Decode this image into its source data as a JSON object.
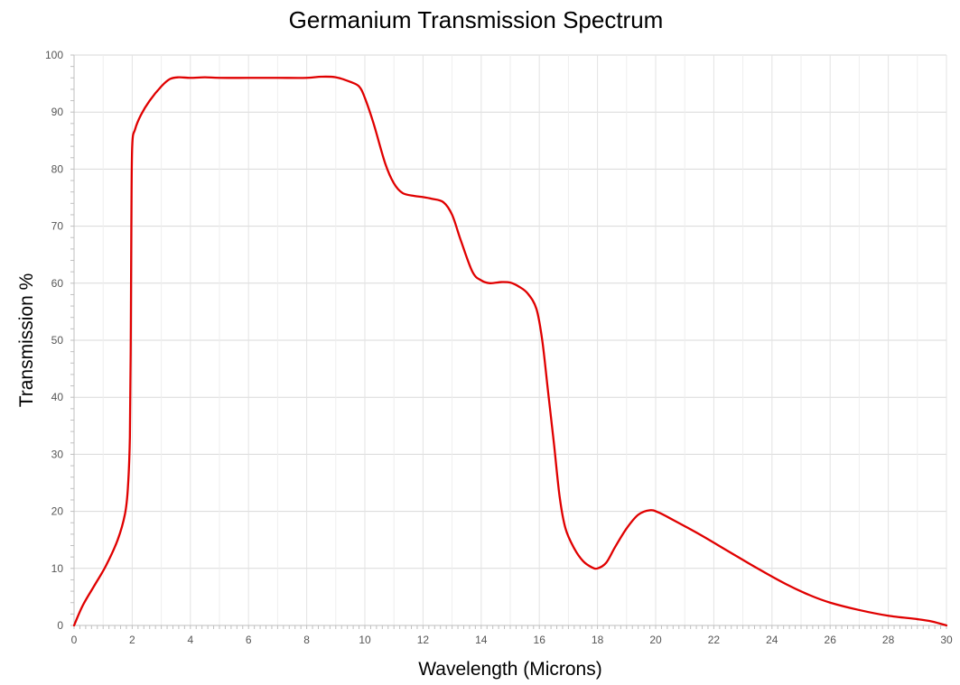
{
  "chart_data": {
    "type": "line",
    "title": "Germanium Transmission Spectrum",
    "xlabel": "Wavelength (Microns)",
    "ylabel": "Transmission %",
    "xlim": [
      0,
      30
    ],
    "ylim": [
      0,
      100
    ],
    "x_ticks": [
      "0",
      "2",
      "4",
      "6",
      "8",
      "10",
      "12",
      "14",
      "16",
      "18",
      "20",
      "22",
      "24",
      "26",
      "28",
      "30"
    ],
    "y_ticks": [
      "0",
      "10",
      "20",
      "30",
      "40",
      "50",
      "60",
      "70",
      "80",
      "90",
      "100"
    ],
    "grid": true,
    "legend": "none",
    "series": [
      {
        "color": "#e00000",
        "points": [
          [
            0,
            0
          ],
          [
            0.3,
            3.5
          ],
          [
            0.7,
            7
          ],
          [
            1.1,
            10.5
          ],
          [
            1.5,
            15
          ],
          [
            1.75,
            19.5
          ],
          [
            1.85,
            24
          ],
          [
            1.92,
            33
          ],
          [
            1.95,
            50
          ],
          [
            1.97,
            70
          ],
          [
            2.0,
            84
          ],
          [
            2.1,
            87
          ],
          [
            2.3,
            89.5
          ],
          [
            2.6,
            92
          ],
          [
            3.0,
            94.5
          ],
          [
            3.3,
            95.8
          ],
          [
            3.6,
            96.1
          ],
          [
            4.0,
            96
          ],
          [
            4.5,
            96.1
          ],
          [
            5,
            96
          ],
          [
            6,
            96
          ],
          [
            7,
            96
          ],
          [
            8,
            96
          ],
          [
            8.5,
            96.2
          ],
          [
            9,
            96.1
          ],
          [
            9.5,
            95.3
          ],
          [
            9.8,
            94.5
          ],
          [
            10.0,
            92.5
          ],
          [
            10.3,
            88
          ],
          [
            10.7,
            81
          ],
          [
            11.0,
            77.5
          ],
          [
            11.3,
            75.8
          ],
          [
            11.7,
            75.3
          ],
          [
            12.0,
            75.1
          ],
          [
            12.3,
            74.8
          ],
          [
            12.7,
            74.2
          ],
          [
            13.0,
            72
          ],
          [
            13.3,
            67.5
          ],
          [
            13.7,
            62
          ],
          [
            14.0,
            60.5
          ],
          [
            14.3,
            60
          ],
          [
            14.7,
            60.2
          ],
          [
            15.0,
            60.1
          ],
          [
            15.3,
            59.4
          ],
          [
            15.6,
            58.2
          ],
          [
            15.9,
            55.5
          ],
          [
            16.1,
            50
          ],
          [
            16.3,
            41
          ],
          [
            16.5,
            32
          ],
          [
            16.7,
            22.5
          ],
          [
            16.9,
            17
          ],
          [
            17.2,
            13.5
          ],
          [
            17.5,
            11.3
          ],
          [
            17.8,
            10.2
          ],
          [
            18.0,
            10
          ],
          [
            18.3,
            11
          ],
          [
            18.6,
            13.7
          ],
          [
            19.0,
            17
          ],
          [
            19.4,
            19.4
          ],
          [
            19.8,
            20.2
          ],
          [
            20.1,
            19.8
          ],
          [
            20.6,
            18.5
          ],
          [
            21.5,
            16
          ],
          [
            22.5,
            13
          ],
          [
            23.5,
            10
          ],
          [
            24.5,
            7.2
          ],
          [
            25.3,
            5.3
          ],
          [
            26.0,
            4
          ],
          [
            27.0,
            2.7
          ],
          [
            28.0,
            1.7
          ],
          [
            29.0,
            1.1
          ],
          [
            29.5,
            0.7
          ],
          [
            30,
            0
          ]
        ]
      }
    ]
  }
}
